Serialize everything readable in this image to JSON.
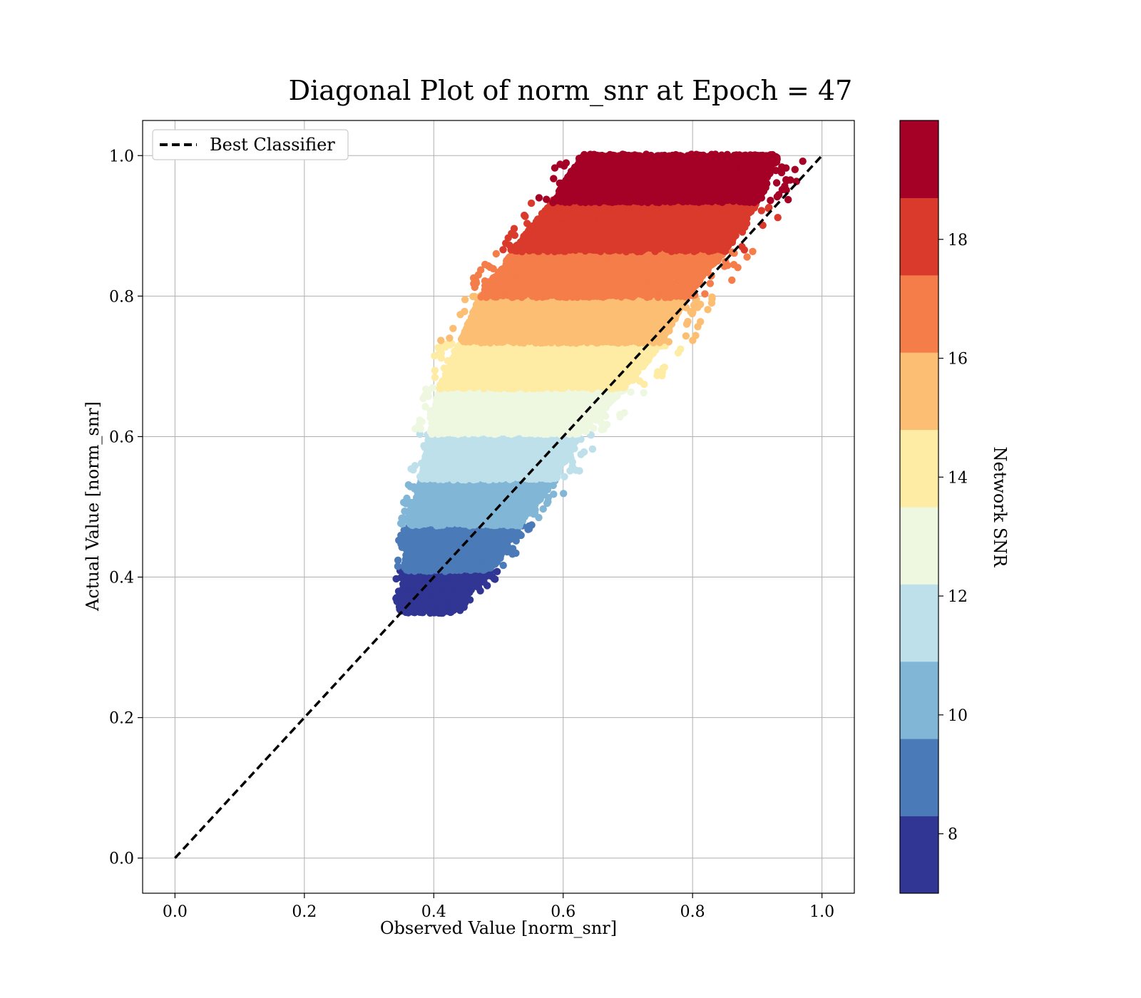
{
  "chart_data": {
    "type": "scatter",
    "title": "Diagonal Plot of norm_snr at Epoch = 47",
    "xlabel": "Observed Value [norm_snr]",
    "ylabel": "Actual Value [norm_snr]",
    "xlim": [
      -0.05,
      1.05
    ],
    "ylim": [
      -0.05,
      1.05
    ],
    "xticks": [
      "0.0",
      "0.2",
      "0.4",
      "0.6",
      "0.8",
      "1.0"
    ],
    "yticks": [
      "0.0",
      "0.2",
      "0.4",
      "0.6",
      "0.8",
      "1.0"
    ],
    "grid": true,
    "legend": {
      "label": "Best Classifier",
      "location": "top-left"
    },
    "reference_line": {
      "name": "Best Classifier",
      "x": [
        0.0,
        1.0
      ],
      "y": [
        0.0,
        1.0
      ],
      "style": "dashed",
      "color": "#000000"
    },
    "colorbar": {
      "label": "Network SNR",
      "range": [
        7,
        20
      ],
      "tick_values": [
        8,
        10,
        12,
        14,
        16,
        18
      ],
      "tick_labels": [
        "8",
        "10",
        "12",
        "14",
        "16",
        "18"
      ],
      "bands": [
        {
          "snr_range": [
            7.0,
            8.3
          ],
          "y_range": [
            0.35,
            0.41
          ],
          "color": "#313695"
        },
        {
          "snr_range": [
            8.3,
            9.6
          ],
          "y_range": [
            0.41,
            0.475
          ],
          "color": "#4a7ab7"
        },
        {
          "snr_range": [
            9.6,
            10.9
          ],
          "y_range": [
            0.475,
            0.54
          ],
          "color": "#81b6d6"
        },
        {
          "snr_range": [
            10.9,
            12.2
          ],
          "y_range": [
            0.54,
            0.605
          ],
          "color": "#bde0eb"
        },
        {
          "snr_range": [
            12.2,
            13.5
          ],
          "y_range": [
            0.605,
            0.67
          ],
          "color": "#eef7e0"
        },
        {
          "snr_range": [
            13.5,
            14.8
          ],
          "y_range": [
            0.67,
            0.735
          ],
          "color": "#feeba4"
        },
        {
          "snr_range": [
            14.8,
            16.1
          ],
          "y_range": [
            0.735,
            0.8
          ],
          "color": "#fcbe72"
        },
        {
          "snr_range": [
            16.1,
            17.4
          ],
          "y_range": [
            0.8,
            0.865
          ],
          "color": "#f47d4a"
        },
        {
          "snr_range": [
            17.4,
            18.7
          ],
          "y_range": [
            0.865,
            0.935
          ],
          "color": "#d93a2b"
        },
        {
          "snr_range": [
            18.7,
            20.0
          ],
          "y_range": [
            0.935,
            1.0
          ],
          "color": "#a50026"
        }
      ]
    },
    "point_distribution": {
      "description_of_shape": "Points spread around diagonal; observed value ranges approx from 0.34 at low SNR to 0.98 at high SNR",
      "rows": [
        {
          "y": 0.35,
          "x_min": 0.34,
          "x_max": 0.44
        },
        {
          "y": 0.41,
          "x_min": 0.34,
          "x_max": 0.51
        },
        {
          "y": 0.475,
          "x_min": 0.345,
          "x_max": 0.56
        },
        {
          "y": 0.54,
          "x_min": 0.36,
          "x_max": 0.62
        },
        {
          "y": 0.605,
          "x_min": 0.37,
          "x_max": 0.66
        },
        {
          "y": 0.67,
          "x_min": 0.38,
          "x_max": 0.74
        },
        {
          "y": 0.735,
          "x_min": 0.41,
          "x_max": 0.8
        },
        {
          "y": 0.8,
          "x_min": 0.44,
          "x_max": 0.84
        },
        {
          "y": 0.865,
          "x_min": 0.49,
          "x_max": 0.9
        },
        {
          "y": 0.935,
          "x_min": 0.55,
          "x_max": 0.95
        },
        {
          "y": 1.0,
          "x_min": 0.6,
          "x_max": 0.98
        }
      ]
    }
  }
}
